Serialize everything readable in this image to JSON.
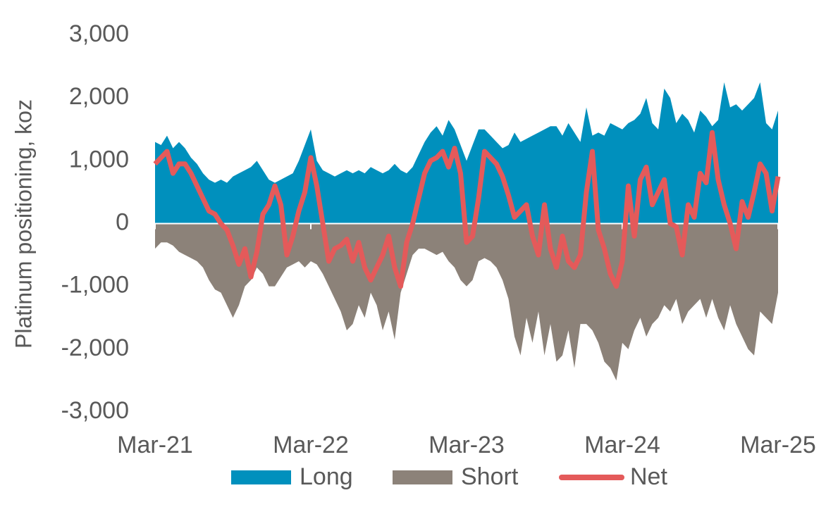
{
  "chart_data": {
    "type": "area",
    "y_axis_label": "Platinum positioning, koz",
    "categories": [
      "Mar-21",
      null,
      null,
      null,
      null,
      null,
      null,
      null,
      null,
      null,
      null,
      null,
      null,
      null,
      null,
      null,
      null,
      null,
      null,
      null,
      null,
      null,
      null,
      null,
      null,
      null,
      "Mar-22",
      null,
      null,
      null,
      null,
      null,
      null,
      null,
      null,
      null,
      null,
      null,
      null,
      null,
      null,
      null,
      null,
      null,
      null,
      null,
      null,
      null,
      null,
      null,
      null,
      null,
      "Mar-23",
      null,
      null,
      null,
      null,
      null,
      null,
      null,
      null,
      null,
      null,
      null,
      null,
      null,
      null,
      null,
      null,
      null,
      null,
      null,
      null,
      null,
      null,
      null,
      null,
      null,
      "Mar-24",
      null,
      null,
      null,
      null,
      null,
      null,
      null,
      null,
      null,
      null,
      null,
      null,
      null,
      null,
      null,
      null,
      null,
      null,
      null,
      null,
      null,
      null,
      null,
      null,
      null,
      "Mar-25"
    ],
    "series": [
      {
        "name": "Long",
        "kind": "area",
        "color": "#0090bd",
        "values": [
          1300,
          1250,
          1400,
          1200,
          1300,
          1200,
          1050,
          950,
          800,
          700,
          650,
          700,
          650,
          750,
          800,
          850,
          900,
          1000,
          850,
          700,
          650,
          700,
          750,
          800,
          1000,
          1250,
          1500,
          1000,
          850,
          800,
          750,
          800,
          850,
          800,
          850,
          800,
          900,
          850,
          800,
          850,
          950,
          850,
          800,
          900,
          1100,
          1300,
          1450,
          1550,
          1400,
          1650,
          1500,
          1250,
          1000,
          1250,
          1500,
          1500,
          1400,
          1300,
          1200,
          1250,
          1450,
          1300,
          1350,
          1400,
          1450,
          1500,
          1550,
          1550,
          1400,
          1600,
          1450,
          1300,
          1850,
          1400,
          1450,
          1400,
          1600,
          1550,
          1500,
          1600,
          1650,
          1750,
          2000,
          1600,
          1500,
          2150,
          2000,
          1600,
          1750,
          1650,
          1450,
          1800,
          1700,
          1550,
          1650,
          2250,
          1850,
          1900,
          1800,
          1900,
          2000,
          2250,
          1600,
          1500,
          1800
        ]
      },
      {
        "name": "Short",
        "kind": "area",
        "color": "#8c8279",
        "values": [
          -400,
          -300,
          -300,
          -350,
          -450,
          -500,
          -550,
          -600,
          -700,
          -900,
          -1050,
          -1100,
          -1300,
          -1500,
          -1300,
          -1000,
          -900,
          -700,
          -800,
          -1000,
          -1000,
          -850,
          -700,
          -650,
          -600,
          -700,
          -600,
          -650,
          -800,
          -1000,
          -1200,
          -1400,
          -1700,
          -1600,
          -1300,
          -1500,
          -1100,
          -1300,
          -1700,
          -1400,
          -1850,
          -1100,
          -800,
          -500,
          -400,
          -400,
          -450,
          -500,
          -450,
          -600,
          -700,
          -900,
          -1000,
          -900,
          -600,
          -550,
          -600,
          -700,
          -900,
          -1200,
          -1800,
          -2100,
          -1500,
          -1900,
          -1400,
          -2100,
          -1600,
          -2200,
          -2100,
          -1700,
          -2300,
          -1600,
          -1600,
          -1700,
          -1900,
          -2200,
          -2300,
          -2500,
          -1900,
          -2000,
          -1700,
          -1500,
          -1800,
          -1600,
          -1500,
          -1300,
          -1400,
          -1200,
          -1600,
          -1400,
          -1300,
          -1200,
          -1500,
          -1200,
          -1500,
          -1700,
          -1300,
          -1600,
          -1800,
          -2000,
          -2100,
          -1400,
          -1500,
          -1600,
          -1100
        ]
      },
      {
        "name": "Net",
        "kind": "line",
        "color": "#e45a5a",
        "values": [
          950,
          1050,
          1150,
          800,
          950,
          950,
          800,
          600,
          400,
          200,
          150,
          0,
          -100,
          -350,
          -650,
          -400,
          -850,
          -450,
          150,
          300,
          600,
          300,
          -500,
          -200,
          200,
          500,
          1050,
          600,
          0,
          -600,
          -400,
          -350,
          -250,
          -600,
          -300,
          -700,
          -900,
          -700,
          -500,
          -200,
          -700,
          -1000,
          -300,
          0,
          400,
          800,
          1000,
          1050,
          1150,
          900,
          1200,
          800,
          -300,
          -200,
          400,
          1150,
          1050,
          950,
          750,
          450,
          100,
          200,
          300,
          -200,
          -500,
          300,
          -400,
          -700,
          -200,
          -600,
          -700,
          -500,
          500,
          1150,
          -100,
          -400,
          -800,
          -1000,
          -600,
          600,
          -200,
          700,
          900,
          300,
          500,
          700,
          0,
          -50,
          -500,
          300,
          100,
          800,
          650,
          1450,
          700,
          300,
          0,
          -400,
          350,
          100,
          500,
          950,
          800,
          200,
          750
        ]
      }
    ],
    "ylim": [
      -3000,
      3000
    ],
    "yticks": [
      {
        "value": -3000,
        "label": "-3,000"
      },
      {
        "value": -2000,
        "label": "-2,000"
      },
      {
        "value": -1000,
        "label": "-1,000"
      },
      0,
      {
        "value": 1000,
        "label": "1,000"
      },
      {
        "value": 2000,
        "label": "2,000"
      },
      {
        "value": 3000,
        "label": "3,000"
      }
    ],
    "grid": false,
    "legend": "bottom"
  }
}
